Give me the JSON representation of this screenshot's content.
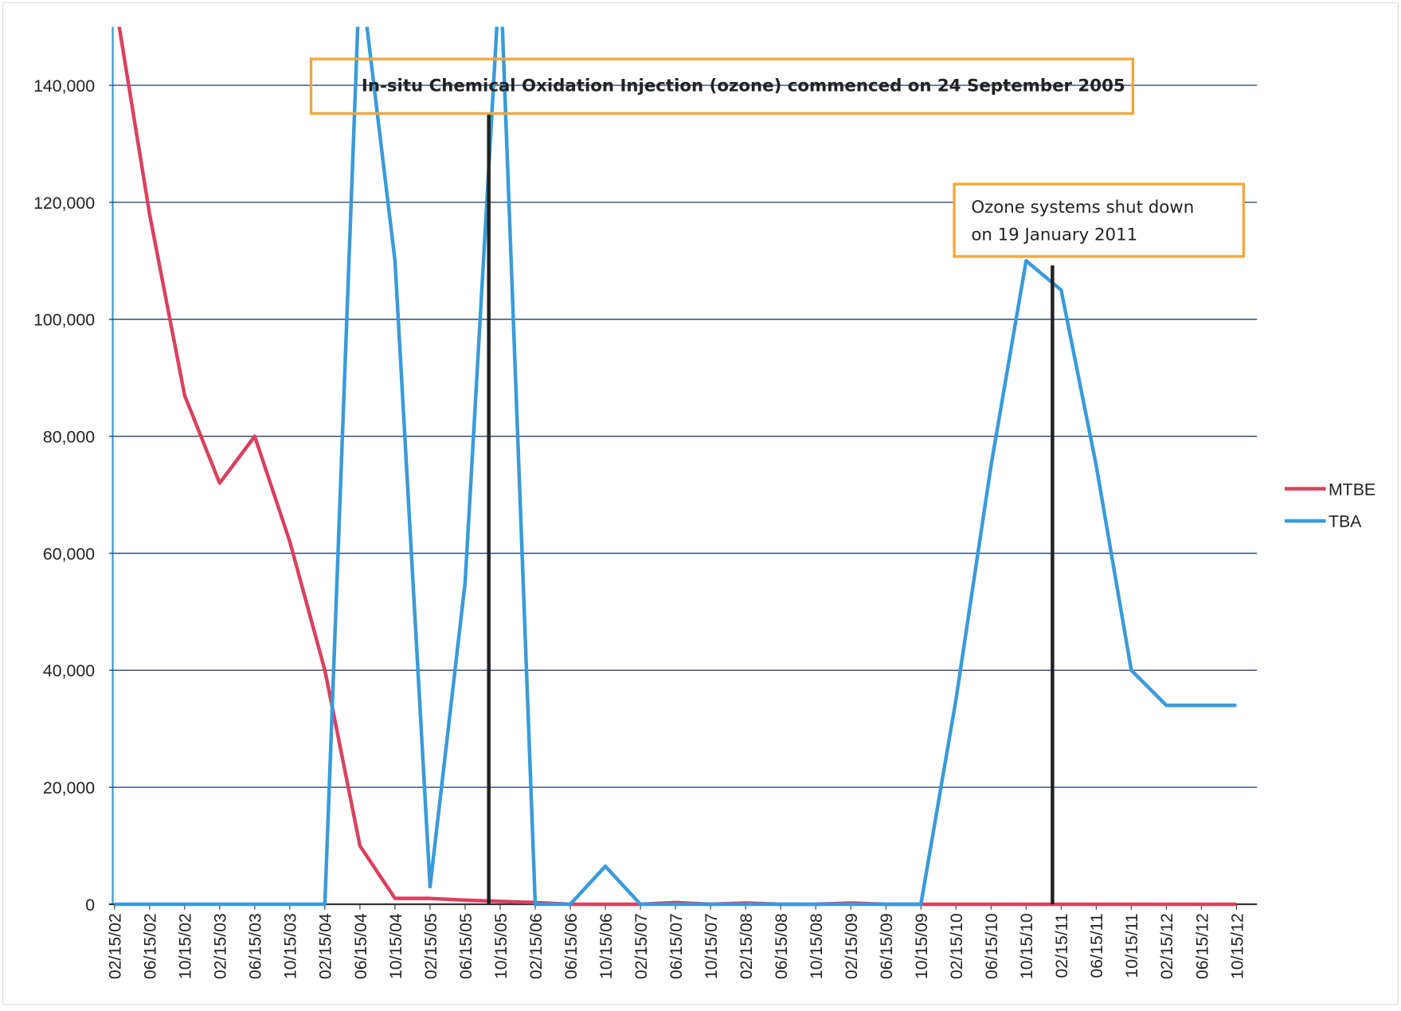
{
  "chart_data": {
    "type": "line",
    "categories": [
      "02/15/02",
      "06/15/02",
      "10/15/02",
      "02/15/03",
      "06/15/03",
      "10/15/03",
      "02/15/04",
      "06/15/04",
      "10/15/04",
      "02/15/05",
      "06/15/05",
      "10/15/05",
      "02/15/06",
      "06/15/06",
      "10/15/06",
      "02/15/07",
      "06/15/07",
      "10/15/07",
      "02/15/08",
      "06/15/08",
      "10/15/08",
      "02/15/09",
      "06/15/09",
      "10/15/09",
      "02/15/10",
      "06/15/10",
      "10/15/10",
      "02/15/11",
      "06/15/11",
      "10/15/11",
      "02/15/12",
      "06/15/12",
      "10/15/12"
    ],
    "series": [
      {
        "name": "MTBE",
        "color": "#d9415e",
        "values": [
          155000,
          118000,
          87000,
          72000,
          80000,
          62000,
          40000,
          10000,
          1000,
          1000,
          700,
          500,
          300,
          0,
          0,
          0,
          300,
          0,
          200,
          0,
          0,
          200,
          0,
          0,
          0,
          0,
          0,
          0,
          0,
          0,
          0,
          0,
          0
        ]
      },
      {
        "name": "TBA",
        "color": "#3a9ad9",
        "values": [
          0,
          0,
          0,
          0,
          0,
          0,
          0,
          160000,
          110000,
          3000,
          55000,
          160000,
          0,
          0,
          6500,
          0,
          0,
          0,
          0,
          0,
          0,
          0,
          0,
          0,
          35000,
          75000,
          110000,
          105000,
          75000,
          40000,
          34000,
          34000,
          34000
        ]
      }
    ],
    "ylim": [
      0,
      150000
    ],
    "yticks": [
      0,
      {
        "value": 20000,
        "label": "20,000"
      },
      {
        "value": 40000,
        "label": "40,000"
      },
      {
        "value": 60000,
        "label": "60,000"
      },
      {
        "value": 80000,
        "label": "80,000"
      },
      {
        "value": 100000,
        "label": "100,000"
      },
      {
        "value": 120000,
        "label": "120,000"
      },
      {
        "value": 140000,
        "label": "140,000"
      }
    ],
    "grid": true,
    "legend": "right",
    "annotations": [
      "In-situ Chemical Oxidation Injection (ozone) commenced on 24 September 2005",
      "Ozone systems shut down",
      "on 19 January 2011"
    ]
  }
}
